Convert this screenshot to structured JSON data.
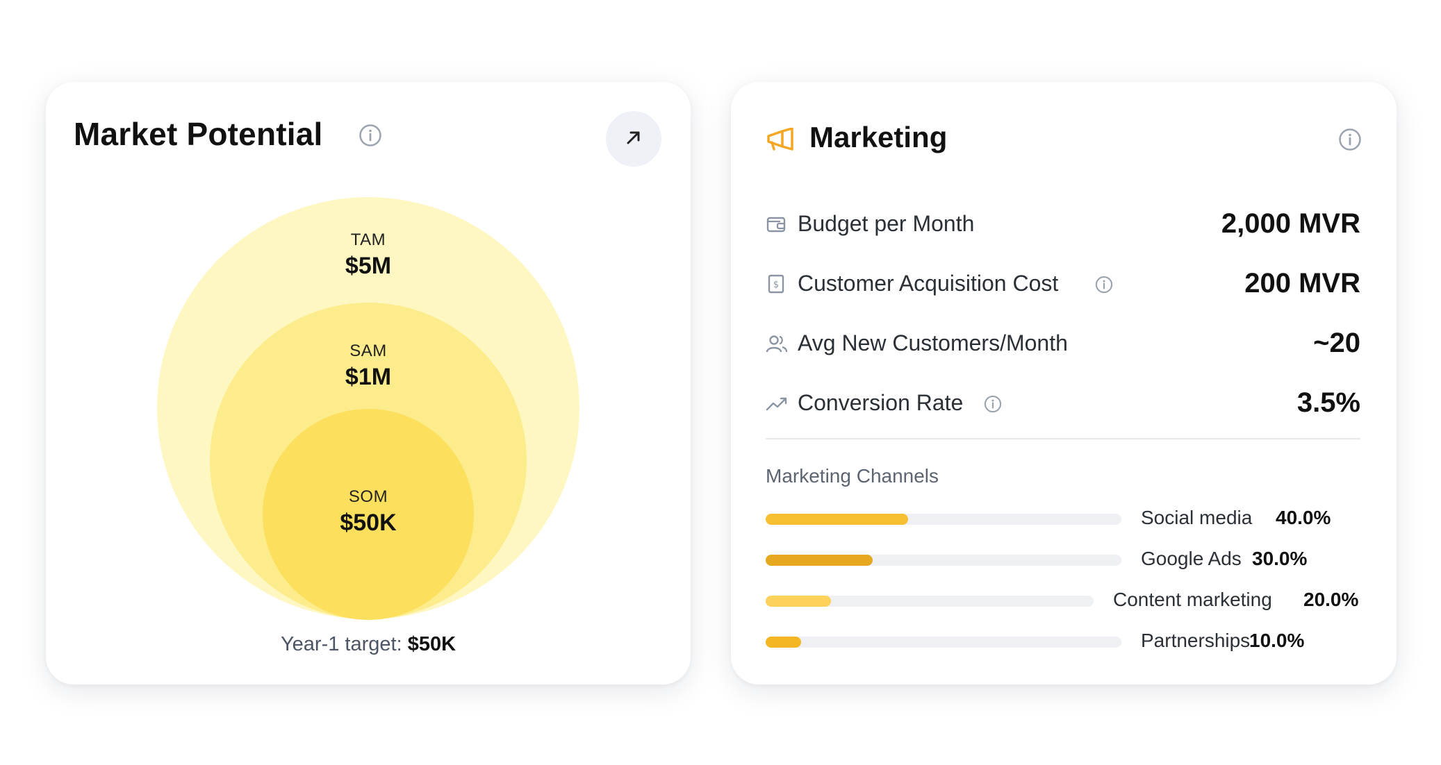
{
  "market_potential": {
    "title": "Market Potential",
    "tam": {
      "label": "TAM",
      "value": "$5M"
    },
    "sam": {
      "label": "SAM",
      "value": "$1M"
    },
    "som": {
      "label": "SOM",
      "value": "$50K"
    },
    "target_prefix": "Year-1 target:",
    "target_value": "$50K",
    "colors": {
      "tam": "#fef7c2",
      "sam": "#fdec8c",
      "som": "#fcdf5c"
    }
  },
  "marketing": {
    "title": "Marketing",
    "metrics": [
      {
        "icon": "wallet-icon",
        "label": "Budget per Month",
        "value": "2,000 MVR",
        "info": false
      },
      {
        "icon": "receipt-icon",
        "label": "Customer Acquisition Cost",
        "value": "200 MVR",
        "info": true
      },
      {
        "icon": "users-icon",
        "label": "Avg New Customers/Month",
        "value": "~20",
        "info": false
      },
      {
        "icon": "trend-up-icon",
        "label": "Conversion Rate",
        "value": "3.5%",
        "info": true
      }
    ],
    "channels_title": "Marketing Channels",
    "channels": [
      {
        "name": "Social media",
        "pct_text": "40.0%",
        "share": 0.4,
        "color": "#f7bf32"
      },
      {
        "name": "Google Ads",
        "pct_text": "30.0%",
        "share": 0.3,
        "color": "#e6a81f"
      },
      {
        "name": "Content marketing",
        "pct_text": "20.0%",
        "share": 0.2,
        "color": "#fcd25a"
      },
      {
        "name": "Partnerships",
        "pct_text": "10.0%",
        "share": 0.1,
        "color": "#f5b623"
      }
    ]
  }
}
